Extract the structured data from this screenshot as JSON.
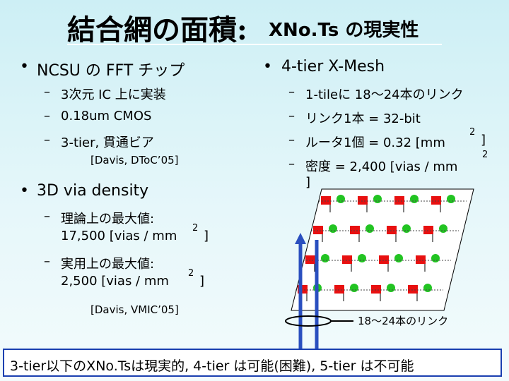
{
  "title": {
    "main": "結合網の面積:",
    "sub": "XNo.Ts の現実性"
  },
  "left": {
    "bullet1": "NCSU の FFT チップ",
    "items1": [
      "3次元 IC 上に実装",
      "0.18um CMOS",
      "3-tier, 貫通ビア"
    ],
    "cite1": "[Davis, DToC’05]",
    "bullet2": "3D via density",
    "item_a": {
      "label": "理論上の最大値:",
      "value": "17,500 [vias / mm",
      "sup": "2",
      "end": "]"
    },
    "item_b": {
      "label": "実用上の最大値:",
      "value": "2,500  [vias / mm",
      "sup": "2",
      "end": "]"
    },
    "cite2": "[Davis, VMIC’05]"
  },
  "right": {
    "bullet": "4-tier X-Mesh",
    "items": [
      "1-tileに 18～24本のリンク",
      "リンク1本 = 32-bit"
    ],
    "item3": {
      "text": "ルータ1個 = 0.32 [mm",
      "sup": "2",
      "end": "]"
    },
    "item4": {
      "text": "密度 = 2,400 [vias / mm",
      "sup": "2",
      "end": "]"
    },
    "diagram_label": "18～24本のリンク"
  },
  "conclusion": "3-tier以下のXNo.Tsは現実的, 4-tier は可能(困難), 5-tier は不可能"
}
